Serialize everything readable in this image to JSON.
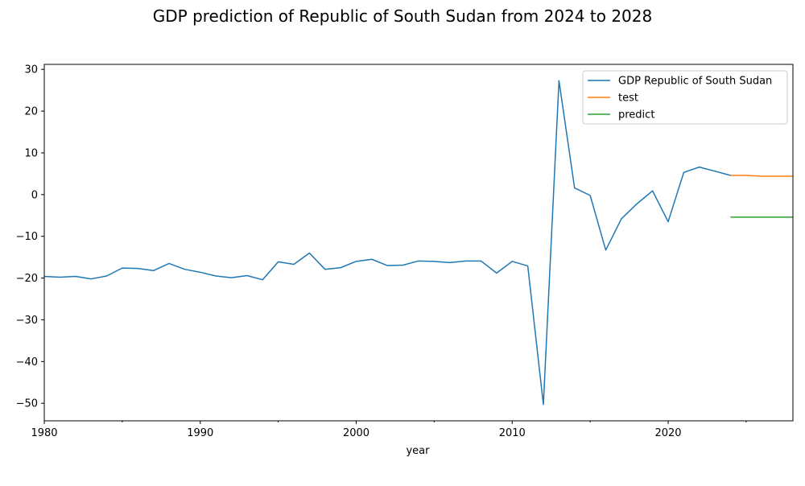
{
  "chart_data": {
    "type": "line",
    "title": "GDP prediction of Republic of South Sudan from 2024 to 2028",
    "xlabel": "year",
    "ylabel": "",
    "xlim": [
      1980,
      2028
    ],
    "ylim": [
      -54.2,
      31.2
    ],
    "x_ticks": [
      1980,
      1990,
      2000,
      2010,
      2020
    ],
    "x_minor_ticks": [
      1985,
      1995,
      2005,
      2015,
      2025
    ],
    "y_ticks": [
      -50,
      -40,
      -30,
      -20,
      -10,
      0,
      10,
      20,
      30
    ],
    "legend_position": "top-right",
    "grid": false,
    "series": [
      {
        "name": "GDP Republic of South Sudan",
        "color": "#1f77b4",
        "x": [
          1980,
          1981,
          1982,
          1983,
          1984,
          1985,
          1986,
          1987,
          1988,
          1989,
          1990,
          1991,
          1992,
          1993,
          1994,
          1995,
          1996,
          1997,
          1998,
          1999,
          2000,
          2001,
          2002,
          2003,
          2004,
          2005,
          2006,
          2007,
          2008,
          2009,
          2010,
          2011,
          2012,
          2013,
          2014,
          2015,
          2016,
          2017,
          2018,
          2019,
          2020,
          2021,
          2022,
          2023,
          2024
        ],
        "y": [
          -19.6,
          -19.8,
          -19.6,
          -20.2,
          -19.5,
          -17.6,
          -17.7,
          -18.2,
          -16.5,
          -17.9,
          -18.6,
          -19.5,
          -19.9,
          -19.4,
          -20.4,
          -16.1,
          -16.7,
          -14.0,
          -17.9,
          -17.5,
          -16.0,
          -15.5,
          -17.0,
          -16.9,
          -15.9,
          -16.0,
          -16.3,
          -15.9,
          -15.9,
          -18.8,
          -16.0,
          -17.1,
          -50.3,
          27.3,
          1.6,
          -0.2,
          -13.3,
          -5.8,
          -2.2,
          0.9,
          -6.5,
          5.3,
          6.6,
          5.6,
          4.6
        ]
      },
      {
        "name": "test",
        "color": "#ff7f0e",
        "x": [
          2024,
          2025,
          2026,
          2027,
          2028
        ],
        "y": [
          4.6,
          4.6,
          4.4,
          4.4,
          4.4
        ]
      },
      {
        "name": "predict",
        "color": "#2ca02c",
        "x": [
          2024,
          2025,
          2026,
          2027,
          2028
        ],
        "y": [
          -5.4,
          -5.4,
          -5.4,
          -5.4,
          -5.4
        ]
      }
    ]
  }
}
